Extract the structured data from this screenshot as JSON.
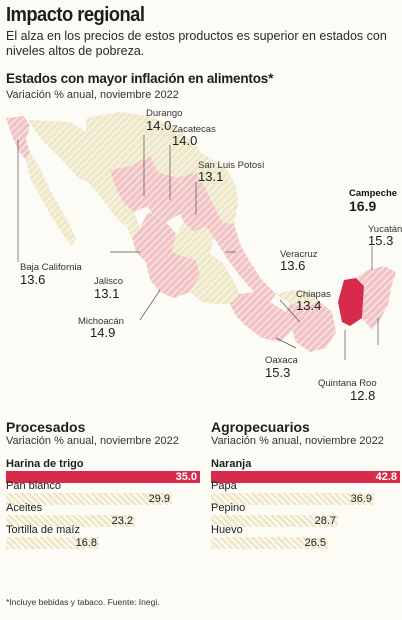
{
  "header": {
    "title": "Impacto regional",
    "subtitle": "El alza en los precios de estos productos es superior en estados con niveles altos de pobreza."
  },
  "map": {
    "title": "Estados con mayor inflación en alimentos*",
    "subtitle": "Variación % anual, noviembre 2022",
    "colors": {
      "highlight": "#d62b4a",
      "selected": "#f1c3c4",
      "other": "#eee8c9",
      "hatch": "#ffffff"
    },
    "states": [
      {
        "name": "Durango",
        "value": "14.0"
      },
      {
        "name": "Zacatecas",
        "value": "14.0"
      },
      {
        "name": "San Luis Potosí",
        "value": "13.1"
      },
      {
        "name": "Campeche",
        "value": "16.9"
      },
      {
        "name": "Yucatán",
        "value": "15.3"
      },
      {
        "name": "Baja California",
        "value": "13.6"
      },
      {
        "name": "Veracruz",
        "value": "13.6"
      },
      {
        "name": "Jalisco",
        "value": "13.1"
      },
      {
        "name": "Chiapas",
        "value": "13.4"
      },
      {
        "name": "Michoacán",
        "value": "14.9"
      },
      {
        "name": "Oaxaca",
        "value": "15.3"
      },
      {
        "name": "Quintana Roo",
        "value": "12.8"
      }
    ]
  },
  "chart_data": [
    {
      "type": "bar",
      "title": "Procesados",
      "subtitle": "Variación % anual, noviembre 2022",
      "categories": [
        "Harina de trigo",
        "Pan blanco",
        "Aceites",
        "Tortilla de maíz"
      ],
      "values": [
        35.0,
        29.9,
        23.2,
        16.8
      ],
      "labels": [
        "35.0",
        "29.9",
        "23.2",
        "16.8"
      ],
      "xlim": [
        0,
        35.0
      ],
      "highlight_index": 0
    },
    {
      "type": "bar",
      "title": "Agropecuarios",
      "subtitle": "Variación % anual, noviembre 2022",
      "categories": [
        "Naranja",
        "Papa",
        "Pepino",
        "Huevo"
      ],
      "values": [
        42.8,
        36.9,
        28.7,
        26.5
      ],
      "labels": [
        "42.8",
        "36.9",
        "28.7",
        "26.5"
      ],
      "xlim": [
        0,
        42.8
      ],
      "highlight_index": 0
    }
  ],
  "colors": {
    "bar_highlight": "#d62b4a",
    "bar_normal": "#eee8c9"
  },
  "footnote": "*Incluye bebidas y tabaco. Fuente: Inegi."
}
